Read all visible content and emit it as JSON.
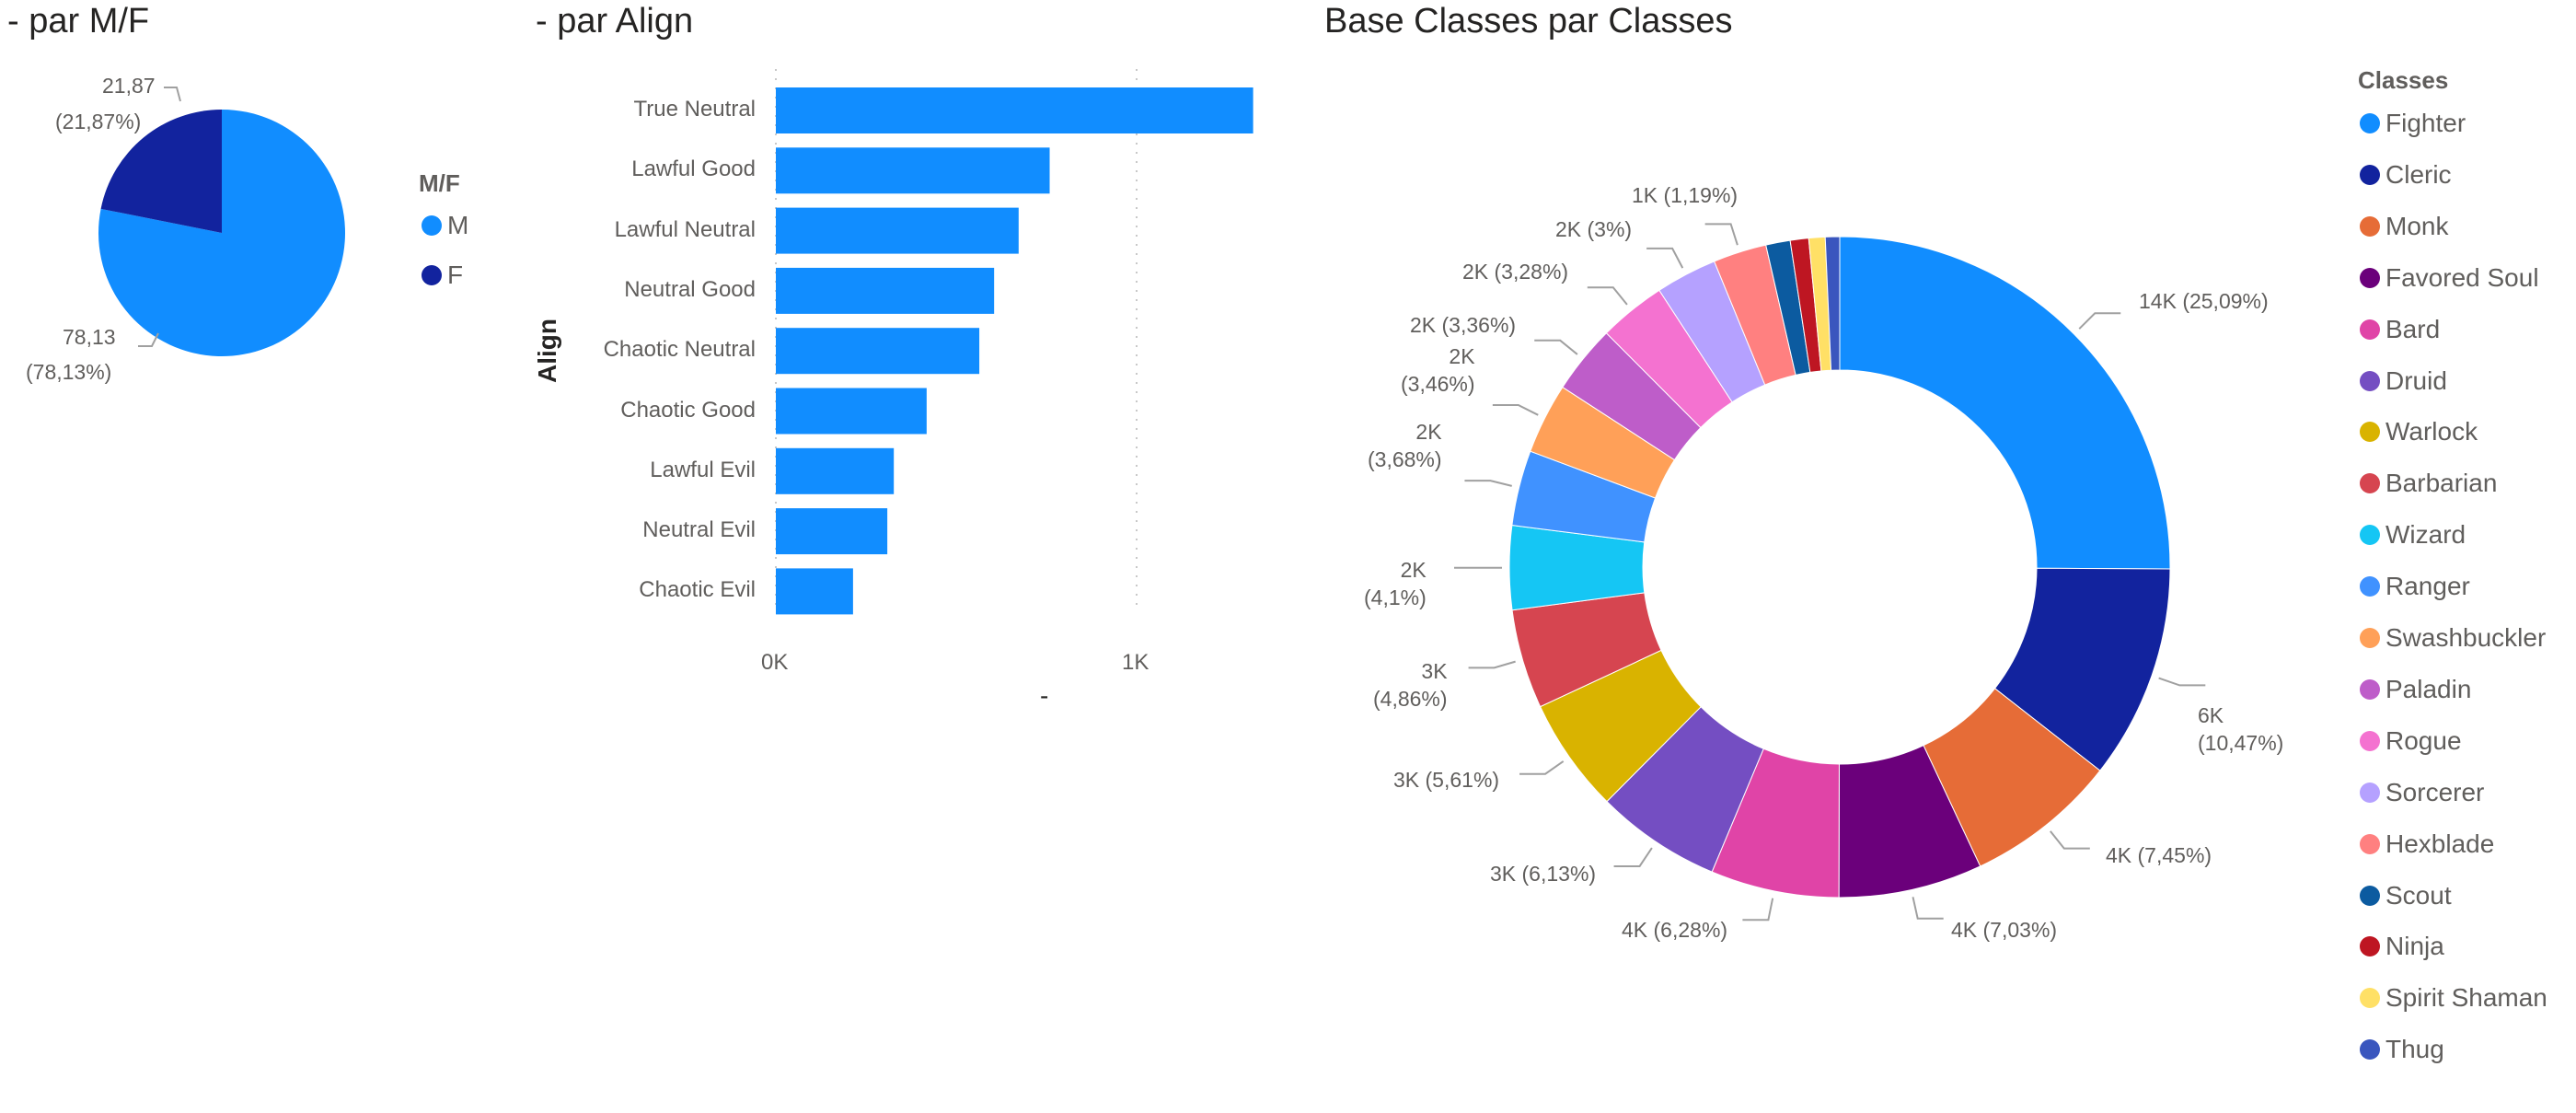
{
  "chart_data": [
    {
      "type": "pie",
      "title": "- par M/F",
      "legend_title": "M/F",
      "legend_placement": "right",
      "categories": [
        "M",
        "F"
      ],
      "values": [
        78.13,
        21.87
      ],
      "value_labels": [
        "78,13",
        "21,87"
      ],
      "percent_labels": [
        "(78,13%)",
        "(21,87%)"
      ],
      "colors": [
        "#118DFF",
        "#12239E"
      ]
    },
    {
      "type": "bar",
      "orientation": "horizontal",
      "title": "- par Align",
      "ylabel": "Align",
      "xlabel": "-",
      "categories": [
        "True Neutral",
        "Lawful Good",
        "Lawful Neutral",
        "Neutral Good",
        "Chaotic Neutral",
        "Chaotic Good",
        "Lawful Evil",
        "Neutral Evil",
        "Chaotic Evil"
      ],
      "values": [
        1323,
        759,
        673,
        605,
        564,
        418,
        327,
        309,
        214
      ],
      "xticks": [
        0,
        1000
      ],
      "xtick_labels": [
        "0K",
        "1K"
      ],
      "xlim": [
        0,
        1400
      ],
      "grid": true,
      "color": "#118DFF"
    },
    {
      "type": "pie",
      "subtype": "donut",
      "title": "Base Classes par Classes",
      "legend_title": "Classes",
      "legend_placement": "right",
      "categories": [
        "Fighter",
        "Cleric",
        "Monk",
        "Favored Soul",
        "Bard",
        "Druid",
        "Warlock",
        "Barbarian",
        "Wizard",
        "Ranger",
        "Swashbuckler",
        "Paladin",
        "Rogue",
        "Sorcerer",
        "Hexblade",
        "Scout",
        "Ninja",
        "Spirit Shaman",
        "Thug"
      ],
      "percents": [
        25.09,
        10.47,
        7.45,
        7.03,
        6.28,
        6.13,
        5.61,
        4.86,
        4.1,
        3.68,
        3.46,
        3.36,
        3.28,
        3.0,
        2.61,
        1.19,
        0.9,
        0.8,
        0.7
      ],
      "colors": [
        "#118DFF",
        "#12239E",
        "#E66C37",
        "#6B007B",
        "#E044A7",
        "#744EC2",
        "#D9B300",
        "#D64550",
        "#15C6F4",
        "#4092FF",
        "#FFA058",
        "#BE5DC9",
        "#F472D0",
        "#B5A1FF",
        "#FF8080",
        "#0C5BA0",
        "#BE1622",
        "#FFE066",
        "#3A56BE"
      ],
      "data_labels": [
        {
          "l1": "14K (25,09%)",
          "l2": ""
        },
        {
          "l1": "6K",
          "l2": "(10,47%)"
        },
        {
          "l1": "4K (7,45%)",
          "l2": ""
        },
        {
          "l1": "4K (7,03%)",
          "l2": ""
        },
        {
          "l1": "4K (6,28%)",
          "l2": ""
        },
        {
          "l1": "3K (6,13%)",
          "l2": ""
        },
        {
          "l1": "3K (5,61%)",
          "l2": ""
        },
        {
          "l1": "3K",
          "l2": "(4,86%)"
        },
        {
          "l1": "2K",
          "l2": "(4,1%)"
        },
        {
          "l1": "2K",
          "l2": "(3,68%)"
        },
        {
          "l1": "2K",
          "l2": "(3,46%)"
        },
        {
          "l1": "2K (3,36%)",
          "l2": ""
        },
        {
          "l1": "2K (3,28%)",
          "l2": ""
        },
        {
          "l1": "2K (3%)",
          "l2": ""
        },
        {
          "l1": "1K (1,19%)",
          "l2": ""
        }
      ]
    }
  ]
}
